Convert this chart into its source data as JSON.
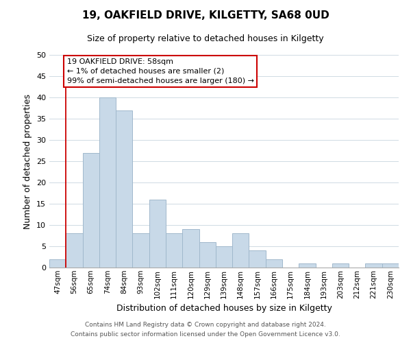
{
  "title": "19, OAKFIELD DRIVE, KILGETTY, SA68 0UD",
  "subtitle": "Size of property relative to detached houses in Kilgetty",
  "xlabel": "Distribution of detached houses by size in Kilgetty",
  "ylabel": "Number of detached properties",
  "footer_line1": "Contains HM Land Registry data © Crown copyright and database right 2024.",
  "footer_line2": "Contains public sector information licensed under the Open Government Licence v3.0.",
  "bar_labels": [
    "47sqm",
    "56sqm",
    "65sqm",
    "74sqm",
    "84sqm",
    "93sqm",
    "102sqm",
    "111sqm",
    "120sqm",
    "129sqm",
    "139sqm",
    "148sqm",
    "157sqm",
    "166sqm",
    "175sqm",
    "184sqm",
    "193sqm",
    "203sqm",
    "212sqm",
    "221sqm",
    "230sqm"
  ],
  "bar_values": [
    2,
    8,
    27,
    40,
    37,
    8,
    16,
    8,
    9,
    6,
    5,
    8,
    4,
    2,
    0,
    1,
    0,
    1,
    0,
    1,
    1
  ],
  "bar_color": "#c8d9e8",
  "bar_edge_color": "#a0b8cc",
  "reference_line_color": "#cc0000",
  "reference_line_index": 1,
  "ylim": [
    0,
    50
  ],
  "yticks": [
    0,
    5,
    10,
    15,
    20,
    25,
    30,
    35,
    40,
    45,
    50
  ],
  "annotation_title": "19 OAKFIELD DRIVE: 58sqm",
  "annotation_line1": "← 1% of detached houses are smaller (2)",
  "annotation_line2": "99% of semi-detached houses are larger (180) →",
  "annotation_box_edge": "#cc0000",
  "annotation_box_face": "#ffffff",
  "title_fontsize": 11,
  "subtitle_fontsize": 9,
  "ylabel_fontsize": 9,
  "xlabel_fontsize": 9
}
